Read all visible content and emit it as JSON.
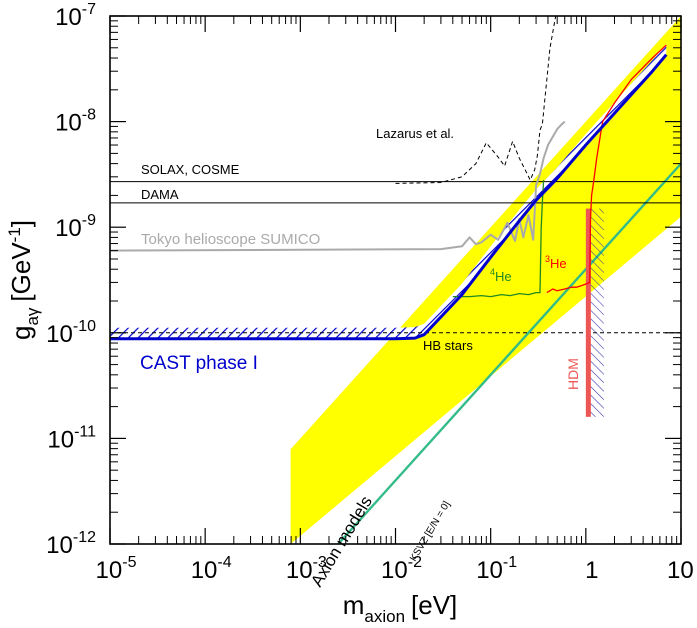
{
  "chart_data": {
    "type": "line",
    "xscale": "log",
    "yscale": "log",
    "xlim": [
      1e-05,
      10
    ],
    "ylim": [
      1e-12,
      1e-07
    ],
    "xlabel": {
      "main": "m",
      "sub": "axion",
      "unit": "[eV]"
    },
    "ylabel": {
      "main": "g",
      "sub": "aγ",
      "unit": "[GeV",
      "sup": "-1",
      "close": "]"
    },
    "x_ticks": [
      {
        "value": 1e-05,
        "base": "10",
        "exp": "-5"
      },
      {
        "value": 0.0001,
        "base": "10",
        "exp": "-4"
      },
      {
        "value": 0.001,
        "base": "10",
        "exp": "-3"
      },
      {
        "value": 0.01,
        "base": "10",
        "exp": "-2"
      },
      {
        "value": 0.1,
        "base": "10",
        "exp": "-1"
      },
      {
        "value": 1,
        "base": "1",
        "exp": ""
      },
      {
        "value": 10,
        "base": "10",
        "exp": ""
      }
    ],
    "y_ticks": [
      {
        "value": 1e-12,
        "base": "10",
        "exp": "-12"
      },
      {
        "value": 1e-11,
        "base": "10",
        "exp": "-11"
      },
      {
        "value": 1e-10,
        "base": "10",
        "exp": "-10"
      },
      {
        "value": 1e-09,
        "base": "10",
        "exp": "-9"
      },
      {
        "value": 1e-08,
        "base": "10",
        "exp": "-8"
      },
      {
        "value": 1e-07,
        "base": "10",
        "exp": "-7"
      }
    ],
    "grid": false,
    "colors": {
      "cast": "#0000cc",
      "axion_band": "#ffff00",
      "ksvz": "#33bb88",
      "tokyo": "#aaaaaa",
      "he4": "#228822",
      "he3": "#ff0000",
      "hdm": "#ee5555",
      "reference": "#000000"
    },
    "series": [
      {
        "name": "CAST phase I",
        "x": [
          1e-05,
          0.001,
          0.01,
          0.016,
          0.02,
          0.05,
          0.1,
          0.2,
          0.3,
          0.5,
          1,
          2,
          5,
          7
        ],
        "y": [
          8.8e-11,
          8.8e-11,
          8.8e-11,
          8.9e-11,
          9.6e-11,
          2.3e-10,
          5.2e-10,
          1.15e-09,
          1.8e-09,
          2.9e-09,
          6e-09,
          1.2e-08,
          3e-08,
          4.3e-08
        ]
      },
      {
        "name": "Tokyo helioscope SUMICO",
        "x": [
          1e-05,
          0.03,
          0.05,
          0.06,
          0.07,
          0.08,
          0.1,
          0.12,
          0.15,
          0.18,
          0.2,
          0.22,
          0.25,
          0.28,
          0.3,
          0.33,
          0.36,
          0.4,
          0.45,
          0.5,
          0.55,
          0.6
        ],
        "y": [
          6e-10,
          6.2e-10,
          6.6e-10,
          8e-10,
          6.9e-10,
          7.2e-10,
          8.5e-10,
          7.6e-10,
          1.1e-09,
          7.4e-10,
          1.2e-09,
          8e-10,
          1.3e-09,
          7.6e-10,
          2.5e-09,
          3.2e-09,
          4.5e-09,
          6e-09,
          7.2e-09,
          8.5e-09,
          9.3e-09,
          1e-08
        ]
      },
      {
        "name": "Lazarus et al.",
        "x": [
          0.01,
          0.03,
          0.05,
          0.07,
          0.09,
          0.12,
          0.14,
          0.17,
          0.2,
          0.23,
          0.26,
          0.29,
          0.31,
          0.33,
          0.35,
          0.38,
          0.42,
          0.5
        ],
        "y": [
          2.6e-09,
          2.65e-09,
          3e-09,
          4e-09,
          6.3e-09,
          4.6e-09,
          3.8e-09,
          6.5e-09,
          4.5e-09,
          3.5e-09,
          2.8e-09,
          3.5e-09,
          4.8e-09,
          8.3e-09,
          9.5e-09,
          2e-08,
          5e-08,
          1.2e-07
        ]
      },
      {
        "name": "4He",
        "x": [
          0.04,
          0.06,
          0.08,
          0.1,
          0.13,
          0.16,
          0.2,
          0.25,
          0.3,
          0.33,
          0.34,
          0.35,
          0.355,
          0.36
        ],
        "y": [
          2.2e-10,
          2.2e-10,
          2.25e-10,
          2.2e-10,
          2.3e-10,
          2.25e-10,
          2.35e-10,
          2.3e-10,
          2.4e-10,
          2.4e-10,
          1e-09,
          1.75e-09,
          2.2e-09,
          2.8e-09
        ]
      },
      {
        "name": "3He",
        "x": [
          0.39,
          0.45,
          0.5,
          0.6,
          0.7,
          0.8,
          0.9,
          1,
          1.1,
          1.12,
          1.15,
          1.2,
          1.3,
          1.5,
          2,
          3,
          5,
          7
        ],
        "y": [
          2.4e-10,
          2.6e-10,
          2.5e-10,
          2.6e-10,
          2.7e-10,
          2.7e-10,
          2.8e-10,
          2.9e-10,
          3e-10,
          1.2e-09,
          2e-09,
          2.6e-09,
          4.5e-09,
          1e-08,
          1.5e-08,
          2.5e-08,
          4e-08,
          5.3e-08
        ]
      }
    ],
    "limits": [
      {
        "name": "SOLAX, COSME",
        "y": 2.7e-09,
        "style": "solid"
      },
      {
        "name": "DAMA",
        "y": 1.7e-09,
        "style": "solid"
      },
      {
        "name": "HB stars",
        "y": 1e-10,
        "style": "dashed"
      }
    ],
    "bands": [
      {
        "name": "Axion models",
        "lower": [
          [
            0.00079,
            1e-12
          ],
          [
            10,
            1.26e-09
          ]
        ],
        "upper": [
          [
            0.00079,
            7.9e-12
          ],
          [
            10,
            1e-07
          ]
        ]
      },
      {
        "name": "HDM",
        "x": 1.05,
        "ymin": 1.6e-11,
        "ymax": 1.5e-09
      }
    ],
    "lines": [
      {
        "name": "KSVZ [E/N = 0]",
        "points": [
          [
            0.0025,
            1e-12
          ],
          [
            10,
            4e-09
          ]
        ]
      }
    ]
  }
}
